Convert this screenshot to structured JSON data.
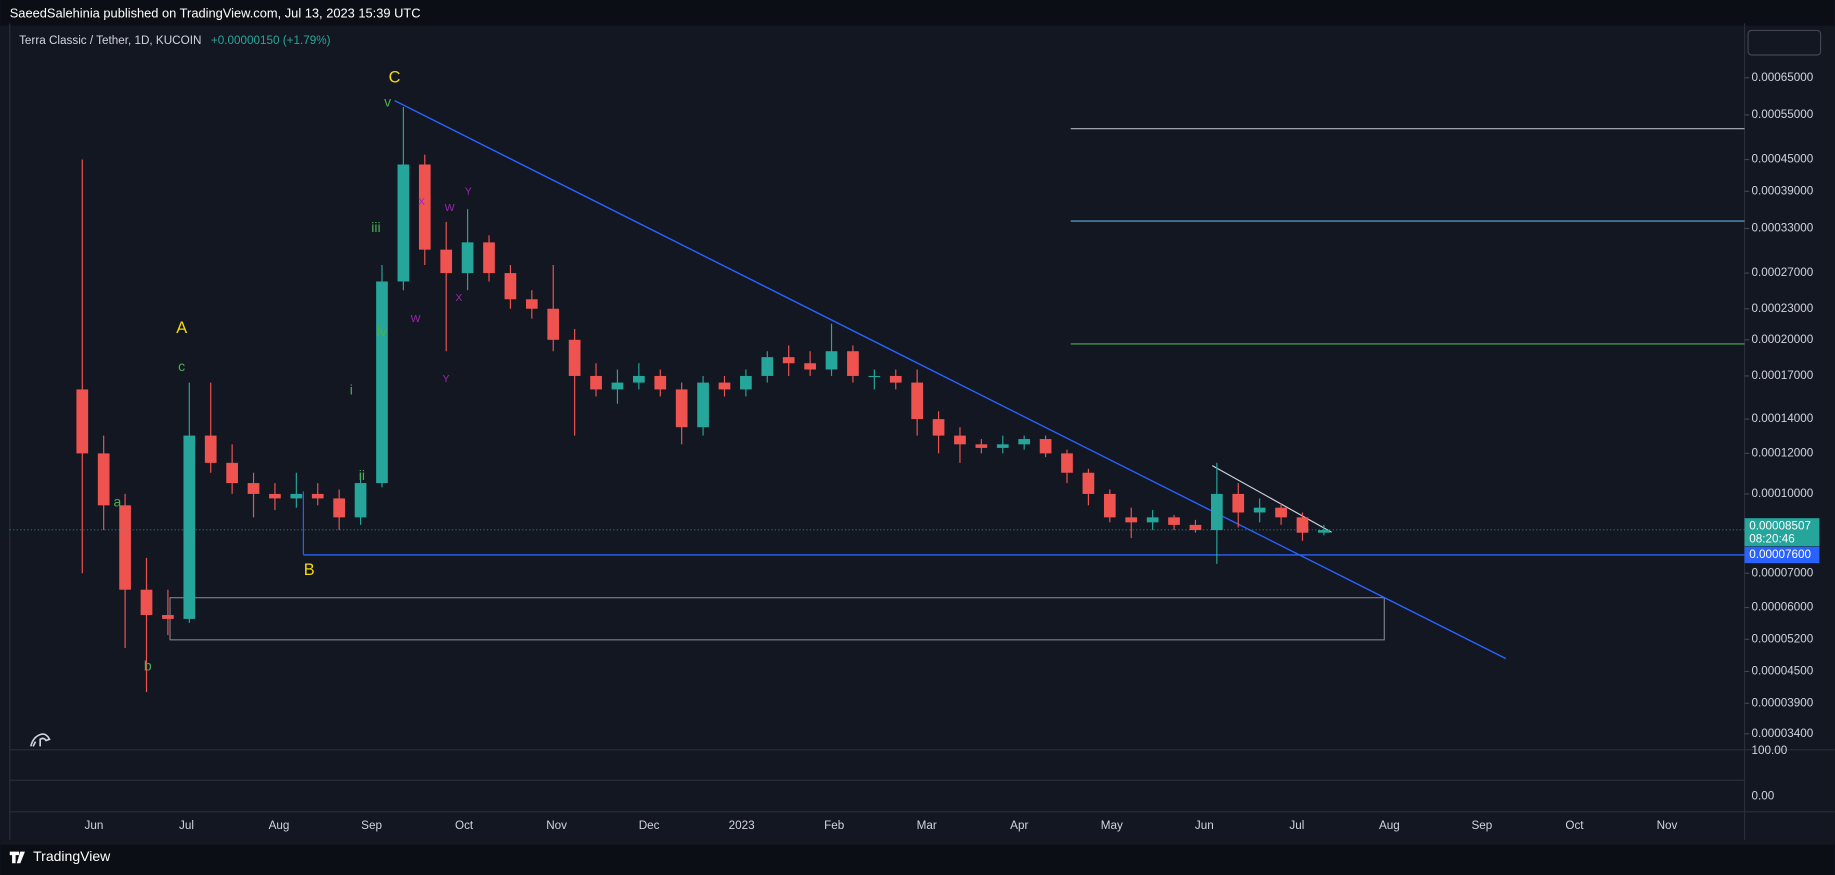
{
  "header": {
    "text": "SaeedSalehinia published on TradingView.com, Jul 13, 2023 15:39 UTC"
  },
  "footer": {
    "brand": "TradingView"
  },
  "chart_data": {
    "type": "candlestick",
    "title": "Terra Classic / Tether, 1D, KUCOIN",
    "change": "+0.00000150 (+1.79%)",
    "log_scale": true,
    "grid": false,
    "up_color": "#26a69a",
    "down_color": "#ef5350",
    "ylim": [
      3.18e-05,
      0.00083
    ],
    "yticks": [
      {
        "value": 0.00065,
        "label": "0.00065000"
      },
      {
        "value": 0.00055,
        "label": "0.00055000"
      },
      {
        "value": 0.00045,
        "label": "0.00045000"
      },
      {
        "value": 0.00039,
        "label": "0.00039000"
      },
      {
        "value": 0.00033,
        "label": "0.00033000"
      },
      {
        "value": 0.00027,
        "label": "0.00027000"
      },
      {
        "value": 0.00023,
        "label": "0.00023000"
      },
      {
        "value": 0.0002,
        "label": "0.00020000"
      },
      {
        "value": 0.00017,
        "label": "0.00017000"
      },
      {
        "value": 0.00014,
        "label": "0.00014000"
      },
      {
        "value": 0.00012,
        "label": "0.00012000"
      },
      {
        "value": 0.0001,
        "label": "0.00010000"
      },
      {
        "value": 7e-05,
        "label": "0.00007000"
      },
      {
        "value": 6e-05,
        "label": "0.00006000"
      },
      {
        "value": 5.2e-05,
        "label": "0.00005200"
      },
      {
        "value": 4.5e-05,
        "label": "0.00004500"
      },
      {
        "value": 3.9e-05,
        "label": "0.00003900"
      },
      {
        "value": 3.4e-05,
        "label": "0.00003400"
      }
    ],
    "categories": [
      "Jun",
      "Jul",
      "Aug",
      "Sep",
      "Oct",
      "Nov",
      "Dec",
      "2023",
      "Feb",
      "Mar",
      "Apr",
      "May",
      "Jun",
      "Jul",
      "Aug",
      "Sep",
      "Oct",
      "Nov"
    ],
    "open": [
      0.00016,
      0.00012,
      9.5e-05,
      6.5e-05,
      5.8e-05,
      5.7e-05,
      0.00013,
      0.000115,
      0.000105,
      0.0001,
      9.8e-05,
      0.0001,
      9.8e-05,
      9e-05,
      0.000105,
      0.00026,
      0.00044,
      0.0003,
      0.00027,
      0.00031,
      0.00027,
      0.00024,
      0.00023,
      0.0002,
      0.00017,
      0.00016,
      0.000165,
      0.00017,
      0.00016,
      0.000135,
      0.000165,
      0.00016,
      0.00017,
      0.000185,
      0.00018,
      0.000175,
      0.00019,
      0.00017,
      0.00017,
      0.000165,
      0.00014,
      0.00013,
      0.000125,
      0.000123,
      0.000125,
      0.000128,
      0.00012,
      0.00011,
      0.0001,
      9e-05,
      8.8e-05,
      9e-05,
      8.7e-05,
      8.5e-05,
      0.0001,
      9.2e-05,
      9.4e-05,
      9e-05,
      8.4e-05
    ],
    "high": [
      0.00045,
      0.00013,
      0.0001,
      7.5e-05,
      6.5e-05,
      0.000165,
      0.000165,
      0.000125,
      0.00011,
      0.000105,
      0.00011,
      0.000105,
      0.000102,
      0.00011,
      0.00028,
      0.00057,
      0.00046,
      0.00034,
      0.00036,
      0.00032,
      0.00028,
      0.00025,
      0.00028,
      0.00021,
      0.00018,
      0.000175,
      0.00018,
      0.000175,
      0.000165,
      0.00017,
      0.00017,
      0.000175,
      0.00019,
      0.000195,
      0.00019,
      0.000215,
      0.000195,
      0.000175,
      0.000175,
      0.000175,
      0.000145,
      0.000135,
      0.000128,
      0.00013,
      0.00013,
      0.00013,
      0.000122,
      0.000112,
      0.000102,
      9.4e-05,
      9.3e-05,
      9.1e-05,
      8.9e-05,
      0.000115,
      0.000105,
      9.8e-05,
      9.6e-05,
      9.2e-05,
      8.7e-05
    ],
    "low": [
      7e-05,
      8.5e-05,
      5e-05,
      4.1e-05,
      5.3e-05,
      5.6e-05,
      0.00011,
      0.0001,
      9e-05,
      9.3e-05,
      9.4e-05,
      9.5e-05,
      8.5e-05,
      8.7e-05,
      0.000103,
      0.00025,
      0.00028,
      0.00019,
      0.00025,
      0.00026,
      0.00023,
      0.00022,
      0.00019,
      0.00013,
      0.000155,
      0.00015,
      0.00016,
      0.000155,
      0.000125,
      0.00013,
      0.000155,
      0.000155,
      0.000165,
      0.00017,
      0.00017,
      0.00017,
      0.000165,
      0.00016,
      0.00016,
      0.00013,
      0.00012,
      0.000115,
      0.00012,
      0.00012,
      0.000122,
      0.000118,
      0.000105,
      9.5e-05,
      8.8e-05,
      8.2e-05,
      8.5e-05,
      8.5e-05,
      8.4e-05,
      7.3e-05,
      8.6e-05,
      8.8e-05,
      8.7e-05,
      8.1e-05,
      8.3e-05
    ],
    "close": [
      0.00012,
      9.5e-05,
      6.5e-05,
      5.8e-05,
      5.7e-05,
      0.00013,
      0.000115,
      0.000105,
      0.0001,
      9.8e-05,
      0.0001,
      9.8e-05,
      9e-05,
      0.000105,
      0.00026,
      0.00044,
      0.0003,
      0.00027,
      0.00031,
      0.00027,
      0.00024,
      0.00023,
      0.0002,
      0.00017,
      0.00016,
      0.000165,
      0.00017,
      0.00016,
      0.000135,
      0.000165,
      0.00016,
      0.00017,
      0.000185,
      0.00018,
      0.000175,
      0.00019,
      0.00017,
      0.00017,
      0.000165,
      0.00014,
      0.00013,
      0.000125,
      0.000123,
      0.000125,
      0.000128,
      0.00012,
      0.00011,
      0.0001,
      9e-05,
      8.8e-05,
      9e-05,
      8.7e-05,
      8.5e-05,
      0.0001,
      9.2e-05,
      9.4e-05,
      9e-05,
      8.4e-05,
      8.5e-05
    ],
    "last_price": {
      "value": 8.507e-05,
      "label": "0.00008507"
    },
    "countdown": "08:20:46",
    "level": {
      "value": 7.6e-05,
      "label": "0.00007600"
    },
    "annotations": [
      {
        "text": "C",
        "color": "#f5d90a"
      },
      {
        "text": "v",
        "color": "#4caf50"
      },
      {
        "text": "A",
        "color": "#f5d90a"
      },
      {
        "text": "c",
        "color": "#4caf50"
      },
      {
        "text": "a",
        "color": "#4caf50"
      },
      {
        "text": "b",
        "color": "#4caf50"
      },
      {
        "text": "B",
        "color": "#f5d90a"
      },
      {
        "text": "i",
        "color": "#4caf50"
      },
      {
        "text": "ii",
        "color": "#4caf50"
      },
      {
        "text": "iii",
        "color": "#4caf50"
      },
      {
        "text": "iv",
        "color": "#4caf50"
      },
      {
        "text": "X",
        "color": "#9c27b0"
      },
      {
        "text": "W",
        "color": "#9c27b0"
      },
      {
        "text": "Y",
        "color": "#9c27b0"
      },
      {
        "text": "W",
        "color": "#9c27b0"
      },
      {
        "text": "X",
        "color": "#9c27b0"
      },
      {
        "text": "Y",
        "color": "#9c27b0"
      }
    ],
    "indicator_ticks": [
      "100.00",
      "0.00"
    ]
  }
}
